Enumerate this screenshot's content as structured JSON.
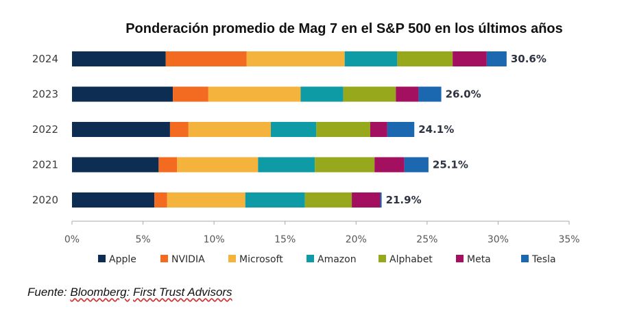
{
  "chart_data": {
    "type": "bar",
    "orientation": "horizontal",
    "stacked": true,
    "title": "Ponderación promedio de Mag 7 en el S&P 500 en los últimos años",
    "categories": [
      "2024",
      "2023",
      "2022",
      "2021",
      "2020"
    ],
    "series": [
      {
        "name": "Apple",
        "color": "#0d2e52",
        "values": [
          6.6,
          7.1,
          6.9,
          6.1,
          5.8
        ]
      },
      {
        "name": "NVIDIA",
        "color": "#f26b21",
        "values": [
          5.7,
          2.5,
          1.3,
          1.3,
          0.9
        ]
      },
      {
        "name": "Microsoft",
        "color": "#f3b33d",
        "values": [
          6.9,
          6.5,
          5.8,
          5.7,
          5.5
        ]
      },
      {
        "name": "Amazon",
        "color": "#0e9ba5",
        "values": [
          3.7,
          3.0,
          3.2,
          4.0,
          4.2
        ]
      },
      {
        "name": "Alphabet",
        "color": "#97a81c",
        "values": [
          3.9,
          3.7,
          3.8,
          4.2,
          3.3
        ]
      },
      {
        "name": "Meta",
        "color": "#a3105f",
        "values": [
          2.4,
          1.6,
          1.2,
          2.1,
          2.0
        ]
      },
      {
        "name": "Tesla",
        "color": "#1b68b0",
        "values": [
          1.4,
          1.6,
          1.9,
          1.7,
          0.1
        ]
      }
    ],
    "totals": [
      "30.6%",
      "26.0%",
      "24.1%",
      "25.1%",
      "21.9%"
    ],
    "xlim": [
      0,
      35
    ],
    "xticks": [
      "0%",
      "5%",
      "10%",
      "15%",
      "20%",
      "25%",
      "30%",
      "35%"
    ],
    "xlabel": "",
    "ylabel": "",
    "grid": false,
    "legend_position": "bottom"
  },
  "source": {
    "prefix": "Fuente: ",
    "bloomberg": "Bloomberg:",
    "first_trust": "First Trust Advisors"
  }
}
